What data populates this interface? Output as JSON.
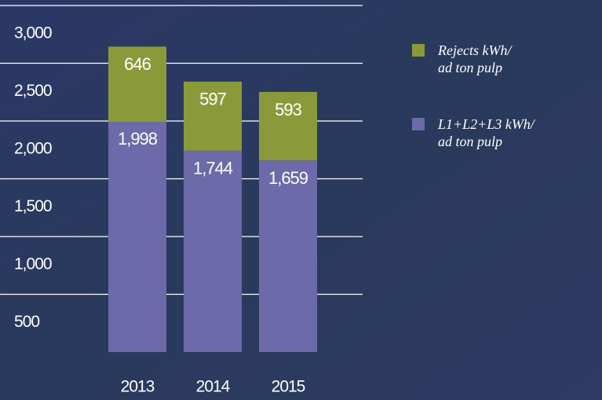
{
  "chart_data": {
    "type": "stacked-bar",
    "categories": [
      "2013",
      "2014",
      "2015"
    ],
    "series": [
      {
        "name": "L1+L2+L3 kWh/ ad ton pulp",
        "color": "#6c6aa8",
        "values": [
          1998,
          1744,
          1659
        ],
        "value_labels": [
          "1,998",
          "1,744",
          "1,659"
        ]
      },
      {
        "name": "Rejects kWh/ ad ton pulp",
        "color": "#8a9a3b",
        "values": [
          646,
          597,
          593
        ]
      }
    ],
    "ylim": [
      0,
      3000
    ],
    "yticks": [
      {
        "value": 500,
        "label": "500"
      },
      {
        "value": 1000,
        "label": "1,000"
      },
      {
        "value": 1500,
        "label": "1,500"
      },
      {
        "value": 2000,
        "label": "2,000"
      },
      {
        "value": 2500,
        "label": "2,500"
      },
      {
        "value": 3000,
        "label": "3,000"
      }
    ],
    "grid": true
  }
}
